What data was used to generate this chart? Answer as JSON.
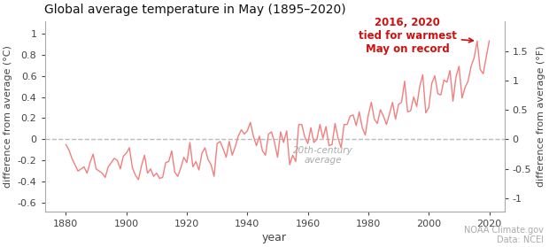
{
  "title": "Global average temperature in May (1895–2020)",
  "xlabel": "year",
  "ylabel_left": "difference from average (°C)",
  "ylabel_right": "difference from average (°F)",
  "annotation_text": "2016, 2020\ntied for warmest\nMay on record",
  "source_text": "NOAA Climate.gov\nData: NCEI",
  "line_color": "#f08080",
  "annotation_color": "#cc1111",
  "zeroline_color": "#bbbbbb",
  "background_color": "#ffffff",
  "xlim": [
    1873,
    2025
  ],
  "ylim_c": [
    -0.68,
    1.12
  ],
  "xticks": [
    1880,
    1900,
    1920,
    1940,
    1960,
    1980,
    2000,
    2020
  ],
  "yticks_c": [
    -0.6,
    -0.4,
    -0.2,
    0.0,
    0.2,
    0.4,
    0.6,
    0.8,
    1.0
  ],
  "yticks_f": [
    -1.0,
    -0.5,
    0.0,
    0.5,
    1.0,
    1.5
  ],
  "years": [
    1880,
    1881,
    1882,
    1883,
    1884,
    1885,
    1886,
    1887,
    1888,
    1889,
    1890,
    1891,
    1892,
    1893,
    1894,
    1895,
    1896,
    1897,
    1898,
    1899,
    1900,
    1901,
    1902,
    1903,
    1904,
    1905,
    1906,
    1907,
    1908,
    1909,
    1910,
    1911,
    1912,
    1913,
    1914,
    1915,
    1916,
    1917,
    1918,
    1919,
    1920,
    1921,
    1922,
    1923,
    1924,
    1925,
    1926,
    1927,
    1928,
    1929,
    1930,
    1931,
    1932,
    1933,
    1934,
    1935,
    1936,
    1937,
    1938,
    1939,
    1940,
    1941,
    1942,
    1943,
    1944,
    1945,
    1946,
    1947,
    1948,
    1949,
    1950,
    1951,
    1952,
    1953,
    1954,
    1955,
    1956,
    1957,
    1958,
    1959,
    1960,
    1961,
    1962,
    1963,
    1964,
    1965,
    1966,
    1967,
    1968,
    1969,
    1970,
    1971,
    1972,
    1973,
    1974,
    1975,
    1976,
    1977,
    1978,
    1979,
    1980,
    1981,
    1982,
    1983,
    1984,
    1985,
    1986,
    1987,
    1988,
    1989,
    1990,
    1991,
    1992,
    1993,
    1994,
    1995,
    1996,
    1997,
    1998,
    1999,
    2000,
    2001,
    2002,
    2003,
    2004,
    2005,
    2006,
    2007,
    2008,
    2009,
    2010,
    2011,
    2012,
    2013,
    2014,
    2015,
    2016,
    2017,
    2018,
    2019,
    2020
  ],
  "anomalies_c": [
    -0.05,
    -0.1,
    -0.18,
    -0.24,
    -0.3,
    -0.28,
    -0.26,
    -0.32,
    -0.22,
    -0.14,
    -0.28,
    -0.3,
    -0.32,
    -0.36,
    -0.26,
    -0.22,
    -0.18,
    -0.2,
    -0.28,
    -0.16,
    -0.13,
    -0.08,
    -0.27,
    -0.34,
    -0.38,
    -0.25,
    -0.15,
    -0.32,
    -0.28,
    -0.35,
    -0.32,
    -0.37,
    -0.36,
    -0.22,
    -0.21,
    -0.11,
    -0.31,
    -0.35,
    -0.27,
    -0.17,
    -0.22,
    -0.03,
    -0.26,
    -0.21,
    -0.29,
    -0.13,
    -0.08,
    -0.19,
    -0.24,
    -0.35,
    -0.04,
    -0.02,
    -0.09,
    -0.17,
    -0.02,
    -0.15,
    -0.07,
    0.03,
    0.09,
    0.05,
    0.08,
    0.16,
    0.03,
    -0.06,
    0.03,
    -0.11,
    -0.15,
    0.05,
    0.07,
    -0.03,
    -0.17,
    0.07,
    -0.03,
    0.08,
    -0.24,
    -0.15,
    -0.21,
    0.14,
    0.14,
    0.02,
    -0.04,
    0.11,
    -0.03,
    0.0,
    0.14,
    0.01,
    0.12,
    -0.06,
    -0.05,
    0.15,
    0.01,
    -0.08,
    0.14,
    0.14,
    0.22,
    0.23,
    0.13,
    0.26,
    0.11,
    0.04,
    0.23,
    0.35,
    0.19,
    0.15,
    0.28,
    0.22,
    0.14,
    0.24,
    0.35,
    0.19,
    0.33,
    0.35,
    0.55,
    0.26,
    0.27,
    0.4,
    0.31,
    0.5,
    0.61,
    0.25,
    0.3,
    0.53,
    0.6,
    0.43,
    0.42,
    0.56,
    0.54,
    0.65,
    0.36,
    0.59,
    0.69,
    0.39,
    0.49,
    0.55,
    0.69,
    0.77,
    0.93,
    0.66,
    0.62,
    0.78,
    0.93
  ]
}
